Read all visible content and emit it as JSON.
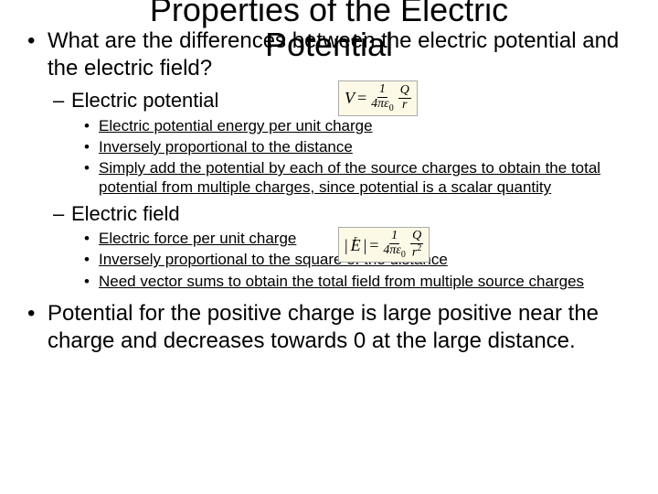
{
  "title_line1": "Properties of the Electric",
  "title_line2": "Potential",
  "q1": "What are the differences between the electric potential and the electric field?",
  "ep_label": "Electric potential",
  "ep_1": "Electric potential energy per unit charge",
  "ep_2": "Inversely proportional to the distance",
  "ep_3": "Simply add the potential by each of the source charges to obtain the total potential from multiple charges, since potential is a scalar quantity",
  "ef_label": "Electric field",
  "ef_1": "Electric force per unit charge",
  "ef_2": "Inversely proportional to the square of the distance",
  "ef_3": "Need vector sums to obtain the total field from multiple source charges",
  "p2": "Potential for the positive charge is large positive near the charge and decreases towards 0 at the large distance.",
  "formula1": {
    "lhs": "V",
    "eq": "=",
    "c1_num": "1",
    "c1_den": "4πε",
    "c1_sub": "0",
    "c2_num": "Q",
    "c2_den": "r"
  },
  "formula2": {
    "lhs": "E",
    "eq": "=",
    "c1_num": "1",
    "c1_den": "4πε",
    "c1_sub": "0",
    "c2_num": "Q",
    "c2_den": "r",
    "c2_sup": "2",
    "abs": "|"
  },
  "colors": {
    "bg": "#ffffff",
    "text": "#000000",
    "formula_bg": "#fcfae6"
  }
}
